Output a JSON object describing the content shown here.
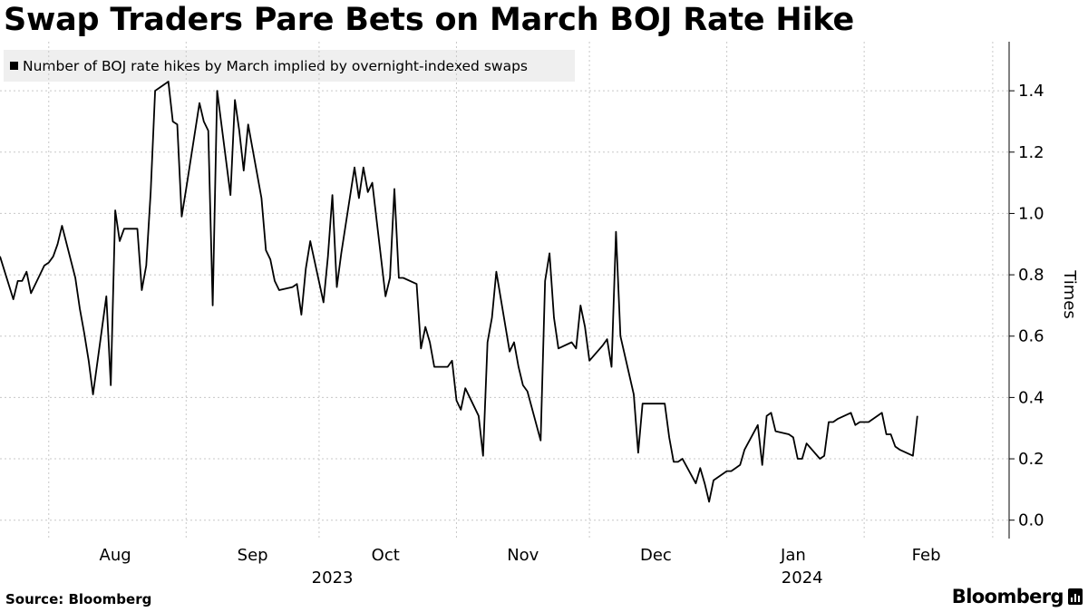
{
  "header": {
    "title": "Swap Traders Pare Bets on March BOJ Rate Hike"
  },
  "footer": {
    "source": "Source: Bloomberg",
    "brand": "Bloomberg",
    "brand_icon": "bar-chart-icon"
  },
  "chart_data": {
    "type": "line",
    "ylabel": "Times",
    "ylim": [
      -0.06,
      1.56
    ],
    "y_ticks": [
      0.0,
      0.2,
      0.4,
      0.6,
      0.8,
      1.0,
      1.2,
      1.4
    ],
    "y_tick_labels": [
      "0.0",
      "0.2",
      "0.4",
      "0.6",
      "0.8",
      "1.0",
      "1.2",
      "1.4"
    ],
    "y_axis_position": "right",
    "grid": true,
    "legend": "top-left",
    "x_range": [
      "2023-07-21",
      "2024-02-29"
    ],
    "month_ticks": [
      "2023-08-01",
      "2023-09-01",
      "2023-10-01",
      "2023-11-01",
      "2023-12-01",
      "2024-01-01",
      "2024-02-01",
      "2024-03-01"
    ],
    "x_tick_labels": [
      {
        "label": "Aug",
        "date": "2023-08-01"
      },
      {
        "label": "Sep",
        "date": "2023-09-01"
      },
      {
        "label": "Oct",
        "date": "2023-10-01"
      },
      {
        "label": "Nov",
        "date": "2023-11-01"
      },
      {
        "label": "Dec",
        "date": "2023-12-01"
      },
      {
        "label": "Jan",
        "date": "2024-01-01"
      },
      {
        "label": "Feb",
        "date": "2024-02-01"
      }
    ],
    "year_labels": [
      {
        "label": "2023",
        "date": "2023-10-04"
      },
      {
        "label": "2024",
        "date": "2024-01-18"
      }
    ],
    "line_color": "#000000",
    "series": [
      {
        "name": "Number of BOJ rate hikes by March implied by overnight-indexed swaps",
        "points": [
          [
            "2023-07-21",
            0.86
          ],
          [
            "2023-07-24",
            0.72
          ],
          [
            "2023-07-25",
            0.78
          ],
          [
            "2023-07-26",
            0.78
          ],
          [
            "2023-07-27",
            0.81
          ],
          [
            "2023-07-28",
            0.74
          ],
          [
            "2023-07-31",
            0.83
          ],
          [
            "2023-08-01",
            0.84
          ],
          [
            "2023-08-02",
            0.86
          ],
          [
            "2023-08-03",
            0.9
          ],
          [
            "2023-08-04",
            0.96
          ],
          [
            "2023-08-07",
            0.79
          ],
          [
            "2023-08-08",
            0.69
          ],
          [
            "2023-08-09",
            0.61
          ],
          [
            "2023-08-10",
            0.52
          ],
          [
            "2023-08-11",
            0.41
          ],
          [
            "2023-08-14",
            0.73
          ],
          [
            "2023-08-15",
            0.44
          ],
          [
            "2023-08-16",
            1.01
          ],
          [
            "2023-08-17",
            0.91
          ],
          [
            "2023-08-18",
            0.95
          ],
          [
            "2023-08-21",
            0.95
          ],
          [
            "2023-08-22",
            0.75
          ],
          [
            "2023-08-23",
            0.83
          ],
          [
            "2023-08-24",
            1.07
          ],
          [
            "2023-08-25",
            1.4
          ],
          [
            "2023-08-28",
            1.43
          ],
          [
            "2023-08-29",
            1.3
          ],
          [
            "2023-08-30",
            1.29
          ],
          [
            "2023-08-31",
            0.99
          ],
          [
            "2023-09-01",
            1.08
          ],
          [
            "2023-09-04",
            1.36
          ],
          [
            "2023-09-05",
            1.3
          ],
          [
            "2023-09-06",
            1.27
          ],
          [
            "2023-09-07",
            0.7
          ],
          [
            "2023-09-08",
            1.4
          ],
          [
            "2023-09-11",
            1.06
          ],
          [
            "2023-09-12",
            1.37
          ],
          [
            "2023-09-13",
            1.27
          ],
          [
            "2023-09-14",
            1.14
          ],
          [
            "2023-09-15",
            1.29
          ],
          [
            "2023-09-18",
            1.05
          ],
          [
            "2023-09-19",
            0.88
          ],
          [
            "2023-09-20",
            0.85
          ],
          [
            "2023-09-21",
            0.78
          ],
          [
            "2023-09-22",
            0.75
          ],
          [
            "2023-09-25",
            0.76
          ],
          [
            "2023-09-26",
            0.77
          ],
          [
            "2023-09-27",
            0.67
          ],
          [
            "2023-09-28",
            0.82
          ],
          [
            "2023-09-29",
            0.91
          ],
          [
            "2023-10-02",
            0.71
          ],
          [
            "2023-10-03",
            0.86
          ],
          [
            "2023-10-04",
            1.06
          ],
          [
            "2023-10-05",
            0.76
          ],
          [
            "2023-10-06",
            0.87
          ],
          [
            "2023-10-09",
            1.15
          ],
          [
            "2023-10-10",
            1.05
          ],
          [
            "2023-10-11",
            1.15
          ],
          [
            "2023-10-12",
            1.07
          ],
          [
            "2023-10-13",
            1.1
          ],
          [
            "2023-10-16",
            0.73
          ],
          [
            "2023-10-17",
            0.79
          ],
          [
            "2023-10-18",
            1.08
          ],
          [
            "2023-10-19",
            0.79
          ],
          [
            "2023-10-20",
            0.79
          ],
          [
            "2023-10-23",
            0.77
          ],
          [
            "2023-10-24",
            0.56
          ],
          [
            "2023-10-25",
            0.63
          ],
          [
            "2023-10-26",
            0.58
          ],
          [
            "2023-10-27",
            0.5
          ],
          [
            "2023-10-30",
            0.5
          ],
          [
            "2023-10-31",
            0.52
          ],
          [
            "2023-11-01",
            0.39
          ],
          [
            "2023-11-02",
            0.36
          ],
          [
            "2023-11-03",
            0.43
          ],
          [
            "2023-11-06",
            0.34
          ],
          [
            "2023-11-07",
            0.21
          ],
          [
            "2023-11-08",
            0.58
          ],
          [
            "2023-11-09",
            0.66
          ],
          [
            "2023-11-10",
            0.81
          ],
          [
            "2023-11-13",
            0.55
          ],
          [
            "2023-11-14",
            0.58
          ],
          [
            "2023-11-15",
            0.5
          ],
          [
            "2023-11-16",
            0.44
          ],
          [
            "2023-11-17",
            0.42
          ],
          [
            "2023-11-20",
            0.26
          ],
          [
            "2023-11-21",
            0.78
          ],
          [
            "2023-11-22",
            0.87
          ],
          [
            "2023-11-23",
            0.66
          ],
          [
            "2023-11-24",
            0.56
          ],
          [
            "2023-11-27",
            0.58
          ],
          [
            "2023-11-28",
            0.56
          ],
          [
            "2023-11-29",
            0.7
          ],
          [
            "2023-11-30",
            0.63
          ],
          [
            "2023-12-01",
            0.52
          ],
          [
            "2023-12-04",
            0.57
          ],
          [
            "2023-12-05",
            0.59
          ],
          [
            "2023-12-06",
            0.5
          ],
          [
            "2023-12-07",
            0.94
          ],
          [
            "2023-12-08",
            0.6
          ],
          [
            "2023-12-11",
            0.41
          ],
          [
            "2023-12-12",
            0.22
          ],
          [
            "2023-12-13",
            0.38
          ],
          [
            "2023-12-14",
            0.38
          ],
          [
            "2023-12-15",
            0.38
          ],
          [
            "2023-12-18",
            0.38
          ],
          [
            "2023-12-19",
            0.27
          ],
          [
            "2023-12-20",
            0.19
          ],
          [
            "2023-12-21",
            0.19
          ],
          [
            "2023-12-22",
            0.2
          ],
          [
            "2023-12-25",
            0.12
          ],
          [
            "2023-12-26",
            0.17
          ],
          [
            "2023-12-27",
            0.12
          ],
          [
            "2023-12-28",
            0.06
          ],
          [
            "2023-12-29",
            0.13
          ],
          [
            "2024-01-01",
            0.16
          ],
          [
            "2024-01-02",
            0.16
          ],
          [
            "2024-01-03",
            0.17
          ],
          [
            "2024-01-04",
            0.18
          ],
          [
            "2024-01-05",
            0.23
          ],
          [
            "2024-01-08",
            0.31
          ],
          [
            "2024-01-09",
            0.18
          ],
          [
            "2024-01-10",
            0.34
          ],
          [
            "2024-01-11",
            0.35
          ],
          [
            "2024-01-12",
            0.29
          ],
          [
            "2024-01-15",
            0.28
          ],
          [
            "2024-01-16",
            0.27
          ],
          [
            "2024-01-17",
            0.2
          ],
          [
            "2024-01-18",
            0.2
          ],
          [
            "2024-01-19",
            0.25
          ],
          [
            "2024-01-22",
            0.2
          ],
          [
            "2024-01-23",
            0.21
          ],
          [
            "2024-01-24",
            0.32
          ],
          [
            "2024-01-25",
            0.32
          ],
          [
            "2024-01-26",
            0.33
          ],
          [
            "2024-01-29",
            0.35
          ],
          [
            "2024-01-30",
            0.31
          ],
          [
            "2024-01-31",
            0.32
          ],
          [
            "2024-02-01",
            0.32
          ],
          [
            "2024-02-02",
            0.32
          ],
          [
            "2024-02-05",
            0.35
          ],
          [
            "2024-02-06",
            0.28
          ],
          [
            "2024-02-07",
            0.28
          ],
          [
            "2024-02-08",
            0.24
          ],
          [
            "2024-02-09",
            0.23
          ],
          [
            "2024-02-12",
            0.21
          ],
          [
            "2024-02-13",
            0.34
          ]
        ]
      }
    ]
  }
}
